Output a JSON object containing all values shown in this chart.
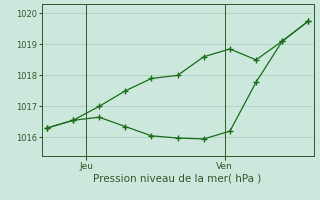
{
  "line1_x": [
    0,
    1,
    2,
    3,
    4,
    5,
    6,
    7,
    8,
    9,
    10
  ],
  "line1_y": [
    1016.3,
    1016.55,
    1016.65,
    1016.35,
    1016.05,
    1015.98,
    1015.95,
    1016.2,
    1017.78,
    1019.1,
    1019.75
  ],
  "line2_x": [
    0,
    1,
    2,
    3,
    4,
    5,
    6,
    7,
    8,
    9,
    10
  ],
  "line2_y": [
    1016.3,
    1016.55,
    1017.0,
    1017.5,
    1017.9,
    1018.0,
    1018.6,
    1018.85,
    1018.5,
    1019.1,
    1019.75
  ],
  "line_color": "#1a6b1a",
  "background_color": "#cce8dc",
  "grid_color": "#a8cfc0",
  "axis_color": "#2d5a2d",
  "text_color": "#2d5a2d",
  "ylim": [
    1015.4,
    1020.3
  ],
  "yticks": [
    1016,
    1017,
    1018,
    1019,
    1020
  ],
  "xlabel": "Pression niveau de la mer( hPa )",
  "jeu_x": 1.5,
  "ven_x": 6.8,
  "xmin": -0.2,
  "xmax": 10.2
}
